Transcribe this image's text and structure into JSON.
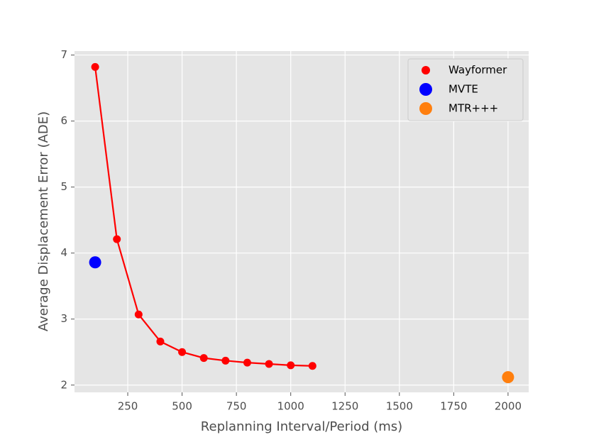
{
  "chart_data": {
    "type": "scatter",
    "xlabel": "Replanning Interval/Period (ms)",
    "ylabel": "Average Displacement Error (ADE)",
    "xlim": [
      5,
      2095
    ],
    "ylim": [
      1.89,
      7.06
    ],
    "xticks": [
      250,
      500,
      750,
      1000,
      1250,
      1500,
      1750,
      2000
    ],
    "yticks": [
      2,
      3,
      4,
      5,
      6,
      7
    ],
    "grid": true,
    "legend": "upper right",
    "series": [
      {
        "name": "Wayformer",
        "color": "#ff0000",
        "line": true,
        "x": [
          100,
          200,
          300,
          400,
          500,
          600,
          700,
          800,
          900,
          1000,
          1100
        ],
        "values": [
          6.82,
          4.21,
          3.07,
          2.66,
          2.5,
          2.41,
          2.37,
          2.34,
          2.32,
          2.3,
          2.29
        ]
      },
      {
        "name": "MVTE",
        "color": "#0000ff",
        "line": false,
        "x": [
          100
        ],
        "values": [
          3.86
        ]
      },
      {
        "name": "MTR+++",
        "color": "#ff7f0e",
        "line": false,
        "x": [
          2000
        ],
        "values": [
          2.12
        ]
      }
    ]
  }
}
